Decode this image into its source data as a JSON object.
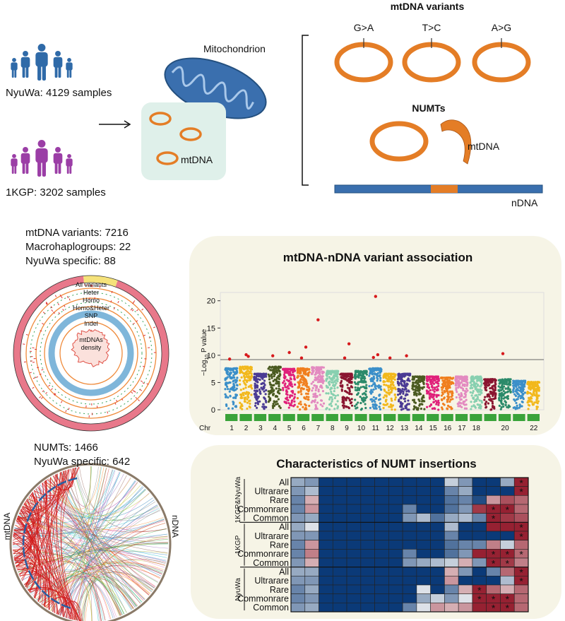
{
  "cohorts": [
    "NyuWa: 4129 samples",
    "1KGP: 3202 samples"
  ],
  "overview": {
    "mitochondrion": "Mitochondrion",
    "mtdna": "mtDNA"
  },
  "variants_panel": {
    "title": "mtDNA variants",
    "substitutions": [
      "G>A",
      "T>C",
      "A>G"
    ],
    "numts_title": "NUMTs",
    "mtdna_label": "mtDNA",
    "ndna_label": "nDNA"
  },
  "variant_stats": {
    "lines": [
      "mtDNA variants: 7216",
      "Macrohaplogroups: 22",
      "NyuWa specific: 88"
    ],
    "track_labels": [
      "All variants",
      "Heter",
      "Homo",
      "Homo&Heter",
      "SNP",
      "Indel"
    ],
    "density_label": [
      "mtDNAs",
      "density"
    ]
  },
  "numt_stats": {
    "lines": [
      "NUMTs: 1466",
      "NyuWa specific: 642"
    ],
    "left_label": "mtDNA",
    "right_label": "nDNA"
  },
  "manhattan": {
    "title": "mtDNA-nDNA variant association",
    "ylabel_parts": [
      "−Log",
      "10",
      " P value"
    ],
    "x_label": "Chr",
    "chromosomes": [
      "1",
      "2",
      "3",
      "4",
      "5",
      "6",
      "7",
      "8",
      "9",
      "10",
      "11",
      "12",
      "13",
      "14",
      "15",
      "16",
      "17",
      "18",
      null,
      "20",
      null,
      "22"
    ],
    "colors": [
      "#3b8fc9",
      "#f2b81c",
      "#4b3b94",
      "#4a5a20",
      "#e0207a",
      "#f07f1e",
      "#e38ac0",
      "#88d0b0",
      "#8a1530",
      "#2b8a6a",
      "#3b8fc9",
      "#f2b81c",
      "#4b3b94",
      "#4a5a20",
      "#e0207a",
      "#f07f1e",
      "#e38ac0",
      "#88d0b0",
      "#8a1530",
      "#2b8a6a",
      "#3b8fc9",
      "#f2b81c"
    ],
    "peaks": [
      7.6,
      7.9,
      6.6,
      7.9,
      7.5,
      7.6,
      7.8,
      7.1,
      6.6,
      7.1,
      7.6,
      6.6,
      6.6,
      6.1,
      6.1,
      5.9,
      6.1,
      6.1,
      5.6,
      5.6,
      5.3,
      5.1
    ],
    "ylim": [
      0,
      21
    ],
    "yticks": [
      0,
      5,
      10,
      15,
      20
    ],
    "threshold": 9.2,
    "hit_color": "#d7191c",
    "hits": {
      "chromosome_index": [
        0,
        1,
        1,
        3,
        4,
        5,
        5,
        6,
        8,
        8,
        10,
        10,
        10,
        11,
        12,
        19
      ],
      "values": [
        9.3,
        10.1,
        9.8,
        9.9,
        10.5,
        11.5,
        9.5,
        16.5,
        12.1,
        9.5,
        20.8,
        10.1,
        9.6,
        9.5,
        9.9,
        10.3
      ]
    }
  },
  "heatmap": {
    "title": "Characteristics of NUMT insertions",
    "groups": [
      {
        "name": "1KGP&NyuWa",
        "rows": [
          "All",
          "Ultrarare",
          "Rare",
          "Commonrare",
          "Common"
        ]
      },
      {
        "name": "1KGP",
        "rows": [
          "All",
          "Ultrarare",
          "Rare",
          "Commonrare",
          "Common"
        ]
      },
      {
        "name": "NyuWa",
        "rows": [
          "All",
          "Ultrarare",
          "Rare",
          "Commonrare",
          "Common"
        ]
      }
    ],
    "vlim": [
      -1,
      1
    ],
    "color_low": "#0b3a78",
    "color_mid": "#f4f4f4",
    "color_high": "#8c0a1c",
    "values": [
      [
        -0.4,
        -0.5,
        -1,
        -1,
        -1,
        -1,
        -1,
        -1,
        -1,
        -1,
        -1,
        -0.2,
        -0.5,
        -1,
        -1,
        -0.4,
        0.9
      ],
      [
        -0.5,
        -0.3,
        -1,
        -1,
        -1,
        -1,
        -1,
        -1,
        -1,
        -1,
        -1,
        -0.6,
        -0.4,
        -1,
        -1,
        -1,
        0.9
      ],
      [
        -0.6,
        0.3,
        -1,
        -1,
        -1,
        -1,
        -1,
        -1,
        -1,
        -1,
        -1,
        -0.7,
        -0.6,
        -0.9,
        0.4,
        0.7,
        0.6
      ],
      [
        -0.6,
        0.4,
        -1,
        -1,
        -1,
        -1,
        -1,
        -1,
        -0.6,
        -1,
        -1,
        -0.7,
        -0.5,
        0.8,
        0.9,
        0.9,
        0.6
      ],
      [
        -0.5,
        -0.4,
        -1,
        -1,
        -1,
        -1,
        -1,
        -1,
        -0.5,
        -0.3,
        -0.7,
        -0.4,
        -0.3,
        -0.6,
        0.9,
        0.8,
        0.7
      ],
      [
        -0.4,
        -0.1,
        -1,
        -1,
        -1,
        -1,
        -1,
        -1,
        -1,
        -1,
        -1,
        -0.3,
        -1,
        -1,
        0.9,
        0.9,
        0.9
      ],
      [
        -0.5,
        -0.5,
        -1,
        -1,
        -1,
        -1,
        -1,
        -1,
        -1,
        -1,
        -1,
        -0.6,
        -1,
        -1,
        -1,
        -1,
        0.9
      ],
      [
        -0.6,
        0.4,
        -1,
        -1,
        -1,
        -1,
        -1,
        -1,
        -1,
        -1,
        -1,
        -0.7,
        -0.6,
        -0.6,
        0.5,
        -0.2,
        0.6
      ],
      [
        -0.6,
        0.5,
        -1,
        -1,
        -1,
        -1,
        -1,
        -1,
        -0.6,
        -1,
        -1,
        -0.7,
        -0.5,
        0.9,
        0.9,
        0.9,
        0.6
      ],
      [
        -0.5,
        0.3,
        -1,
        -1,
        -1,
        -1,
        -1,
        -1,
        -0.5,
        -0.4,
        -0.3,
        -0.2,
        0.3,
        -0.5,
        0.9,
        0.8,
        0.5
      ],
      [
        -0.4,
        -0.4,
        -1,
        -1,
        -1,
        -1,
        -1,
        -1,
        -1,
        -1,
        -1,
        0.3,
        -0.5,
        -1,
        -0.6,
        0.6,
        0.9
      ],
      [
        -0.5,
        -0.5,
        -1,
        -1,
        -1,
        -1,
        -1,
        -1,
        -1,
        -1,
        -1,
        0.4,
        -1,
        -1,
        -1,
        -0.3,
        0.9
      ],
      [
        -0.6,
        -0.4,
        -1,
        -1,
        -1,
        -1,
        -1,
        -1,
        -1,
        -0.1,
        -1,
        -0.6,
        0.3,
        0.9,
        0.6,
        0.3,
        0.6
      ],
      [
        -0.6,
        -0.5,
        -1,
        -1,
        -1,
        -1,
        -1,
        -1,
        -1,
        -0.4,
        -0.2,
        -0.5,
        -0.1,
        0.9,
        0.9,
        0.9,
        0.6
      ],
      [
        -0.5,
        -0.4,
        -1,
        -1,
        -1,
        -1,
        -1,
        -1,
        -0.6,
        -0.1,
        0.4,
        0.3,
        0.4,
        0.9,
        0.9,
        0.9,
        0.6
      ]
    ],
    "star": "*",
    "stars": [
      [
        0,
        16
      ],
      [
        1,
        16
      ],
      [
        3,
        14
      ],
      [
        3,
        15
      ],
      [
        4,
        14
      ],
      [
        5,
        16
      ],
      [
        6,
        16
      ],
      [
        8,
        14
      ],
      [
        8,
        15
      ],
      [
        8,
        16
      ],
      [
        9,
        14
      ],
      [
        9,
        15
      ],
      [
        10,
        16
      ],
      [
        11,
        16
      ],
      [
        12,
        13
      ],
      [
        13,
        13
      ],
      [
        13,
        14
      ],
      [
        13,
        15
      ],
      [
        14,
        14
      ],
      [
        14,
        15
      ]
    ]
  }
}
